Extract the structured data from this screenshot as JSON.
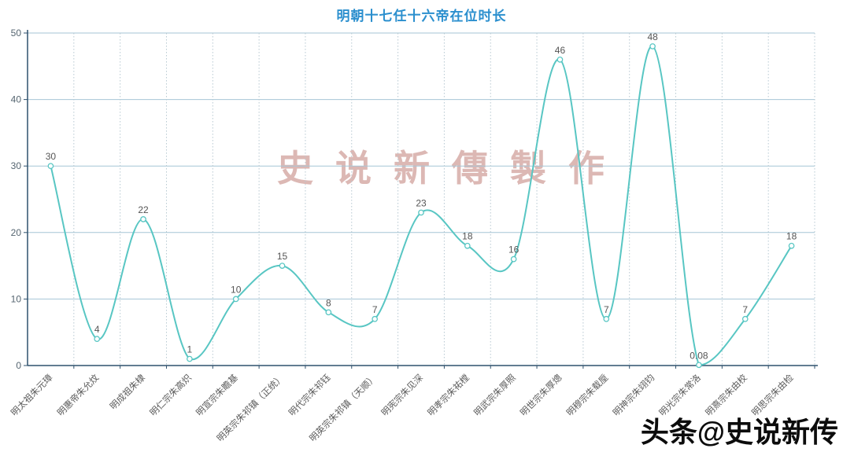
{
  "header": {
    "title": "明朝十七任十六帝在位时长",
    "title_color": "#2b8fce"
  },
  "chart_data": {
    "type": "line",
    "smooth": true,
    "title": "明朝十七任十六帝在位时长",
    "categories": [
      "明太祖朱元璋",
      "明惠帝朱允炆",
      "明成祖朱棣",
      "明仁宗朱高炽",
      "明宣宗朱瞻基",
      "明英宗朱祁镇（正统）",
      "明代宗朱祁钰",
      "明英宗朱祁镇（天顺）",
      "明宪宗朱见深",
      "明孝宗朱祐樘",
      "明武宗朱厚照",
      "明世宗朱厚熜",
      "明穆宗朱载垕",
      "明神宗朱翊钧",
      "明光宗朱常洛",
      "明熹宗朱由校",
      "明思宗朱由检"
    ],
    "values": [
      30,
      4,
      22,
      1,
      10,
      15,
      8,
      7,
      23,
      18,
      16,
      46,
      7,
      48,
      0.08,
      7,
      18
    ],
    "xlabel": "",
    "ylabel": "",
    "ylim": [
      0,
      50
    ],
    "yticks": [
      0,
      10,
      20,
      30,
      40,
      50
    ],
    "x_label_rotation": 45,
    "label_position": "top",
    "legend": "none",
    "grid": "horizontal-solid vertical-dotted",
    "colors": {
      "line": "#58c6c3",
      "marker_fill": "#ffffff",
      "marker_stroke": "#58c6c3",
      "value_label": "#555555",
      "axis_line": "#2f516d",
      "axis_label": "#5b5b5b",
      "grid_h": "#a6c6d6",
      "grid_v": "#b6c8d1"
    }
  },
  "watermarks": {
    "center": "史说新傳製作",
    "corner": "头条@史说新传"
  }
}
